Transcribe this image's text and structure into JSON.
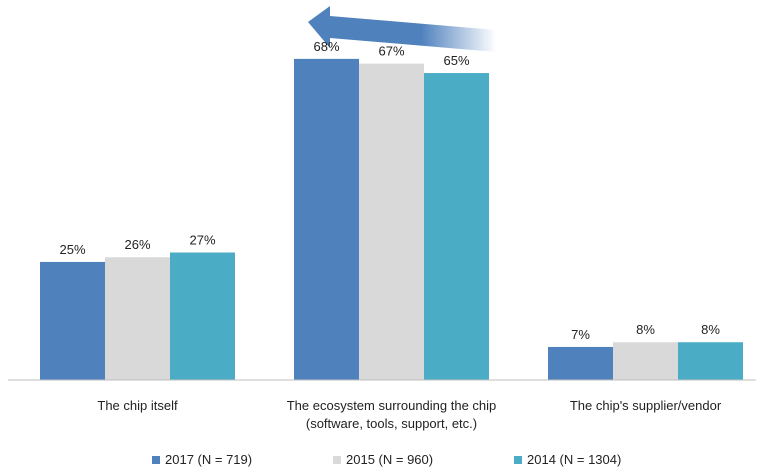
{
  "chart_data": {
    "type": "bar",
    "title": "",
    "xlabel": "",
    "ylabel": "",
    "ylim": [
      0,
      72
    ],
    "grid": false,
    "legend_position": "bottom",
    "categories": [
      [
        "The chip itself"
      ],
      [
        "The ecosystem surrounding the chip",
        "(software, tools, support, etc.)"
      ],
      [
        "The chip's supplier/vendor"
      ]
    ],
    "series": [
      {
        "name": "2017 (N = 719)",
        "color": "#4f81bd",
        "values": [
          25,
          68,
          7
        ],
        "labels": [
          "25%",
          "68%",
          "7%"
        ]
      },
      {
        "name": "2015 (N = 960)",
        "color": "#d9d9d9",
        "values": [
          26,
          67,
          8
        ],
        "labels": [
          "26%",
          "67%",
          "8%"
        ]
      },
      {
        "name": "2014 (N = 1304)",
        "color": "#4bacc6",
        "values": [
          27,
          65,
          8
        ],
        "labels": [
          "27%",
          "65%",
          "8%"
        ]
      }
    ],
    "annotations": [
      {
        "type": "arrow",
        "direction": "left",
        "description": "gradient arrow above the middle category group"
      }
    ]
  }
}
